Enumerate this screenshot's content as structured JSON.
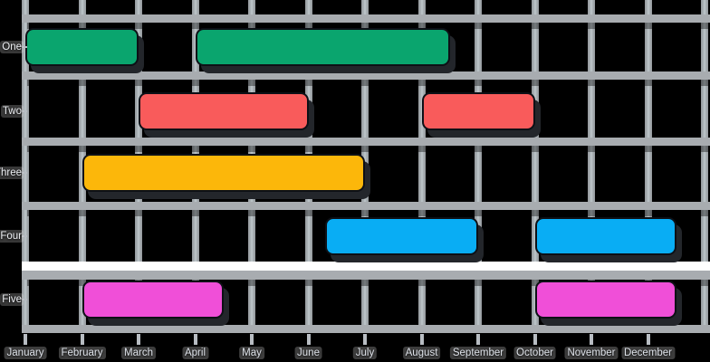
{
  "chart_data": {
    "type": "gantt",
    "title": "",
    "legend": "none",
    "grid": true,
    "background_color": "#000000",
    "grid_color": "#a8acb0",
    "highlight_divider_color": "#ffffff",
    "x_axis": {
      "unit": "month-index (0 = January tick, 1 unit = one month)",
      "range": [
        0,
        12
      ],
      "tick_labels": [
        "January",
        "February",
        "March",
        "April",
        "May",
        "June",
        "July",
        "August",
        "September",
        "October",
        "November",
        "December"
      ]
    },
    "y_axis": {
      "tick_labels": [
        "One",
        "Two",
        "Three",
        "Four",
        "Five"
      ]
    },
    "rows": [
      {
        "label": "One",
        "color": "#0aa56e",
        "bars": [
          {
            "start": 0,
            "end": 2
          },
          {
            "start": 3,
            "end": 7.5
          }
        ]
      },
      {
        "label": "Two",
        "color": "#f95b5b",
        "bars": [
          {
            "start": 2,
            "end": 5
          },
          {
            "start": 7,
            "end": 9
          }
        ]
      },
      {
        "label": "Three",
        "color": "#fcb70a",
        "bars": [
          {
            "start": 1,
            "end": 6
          }
        ]
      },
      {
        "label": "Four",
        "color": "#09adf4",
        "bars": [
          {
            "start": 5.3,
            "end": 8
          },
          {
            "start": 9,
            "end": 11.5
          }
        ]
      },
      {
        "label": "Five",
        "color": "#f04fd8",
        "bars": [
          {
            "start": 1,
            "end": 3.5
          },
          {
            "start": 9,
            "end": 11.5
          }
        ]
      }
    ]
  }
}
